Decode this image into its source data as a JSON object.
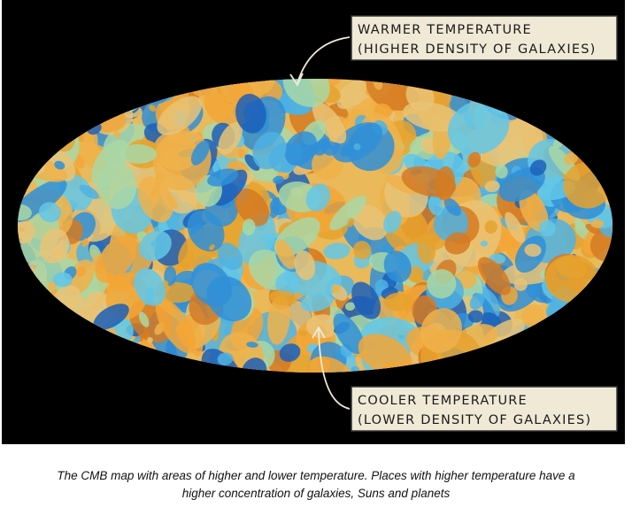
{
  "annotations": [
    {
      "lines": [
        "WARMER TEMPERATURE",
        "(HIGHER DENSITY OF GALAXIES)"
      ]
    },
    {
      "lines": [
        "COOLER TEMPERATURE",
        "(LOWER DENSITY OF GALAXIES)"
      ]
    }
  ],
  "caption": {
    "lines": [
      "The CMB map with areas of higher and lower temperature. Places with higher temperature have a",
      "higher concentration of galaxies, Suns and planets"
    ]
  }
}
